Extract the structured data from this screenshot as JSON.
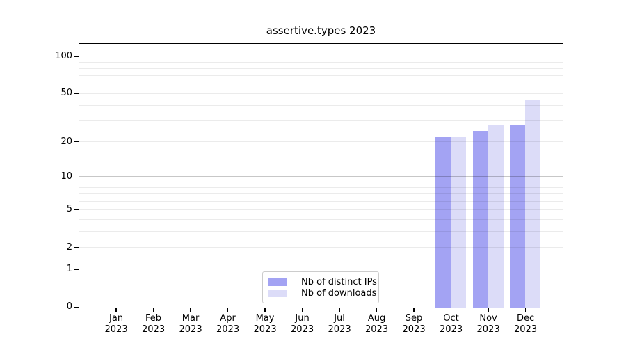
{
  "title": "assertive.types 2023",
  "chart_data": {
    "type": "bar",
    "title": "assertive.types 2023",
    "categories": [
      "Jan 2023",
      "Feb 2023",
      "Mar 2023",
      "Apr 2023",
      "May 2023",
      "Jun 2023",
      "Jul 2023",
      "Aug 2023",
      "Sep 2023",
      "Oct 2023",
      "Nov 2023",
      "Dec 2023"
    ],
    "series": [
      {
        "name": "Nb of distinct IPs",
        "color": "#a3a3f3",
        "values": [
          null,
          null,
          null,
          null,
          null,
          null,
          null,
          null,
          null,
          22,
          25,
          28
        ]
      },
      {
        "name": "Nb of downloads",
        "color": "#dcdcf8",
        "values": [
          null,
          null,
          null,
          null,
          null,
          null,
          null,
          null,
          null,
          22,
          28,
          45
        ]
      }
    ],
    "xlabel": "",
    "ylabel": "",
    "y_scale": "log1p",
    "ylim": [
      0,
      126
    ],
    "y_tick_values": [
      0,
      1,
      2,
      5,
      10,
      20,
      50,
      100
    ],
    "y_tick_labels": [
      "0",
      "1",
      "2",
      "5",
      "10",
      "20",
      "50",
      "100"
    ],
    "gridlines_major": [
      1,
      10,
      100
    ],
    "gridlines_minor": [
      2,
      3,
      4,
      5,
      6,
      7,
      8,
      9,
      20,
      30,
      40,
      50,
      60,
      70,
      80,
      90
    ],
    "grid": true,
    "legend_position": "lower center"
  },
  "colors": {
    "background": "#ffffff",
    "axis": "#000000",
    "grid_major": "rgba(0,0,0,0.22)",
    "grid_minor": "rgba(0,0,0,0.08)",
    "bar_distinct_ips": "#a3a3f3",
    "bar_downloads": "#dcdcf8",
    "legend_border": "#cccccc"
  }
}
